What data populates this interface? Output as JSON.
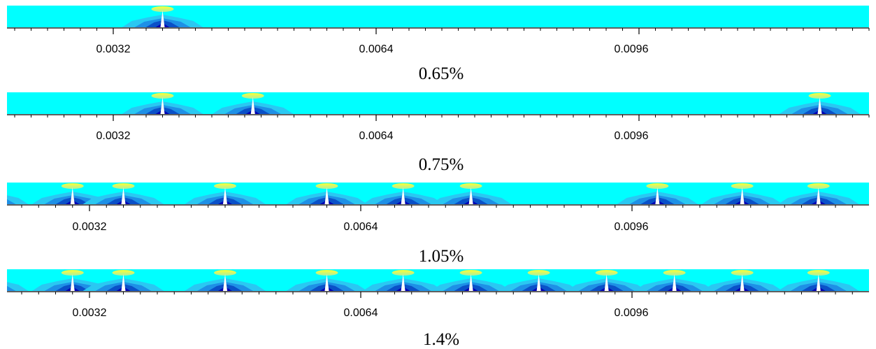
{
  "figure": {
    "colors": {
      "background": "#00FFFF",
      "band_light": "#2AC8F2",
      "band_mid": "#1E90E6",
      "band_dark": "#0A50C8",
      "band_deep": "#0000B4",
      "hot": "#FFFF33",
      "hot_edge": "#A8F0A0",
      "tip": "#FFFFFF",
      "axis": "#000000"
    },
    "axis": {
      "x_min": 0.0017,
      "x_max": 0.0122,
      "major_ticks": [
        0.0032,
        0.0064,
        0.0096
      ],
      "minor_step": 0.0002
    },
    "panels": [
      {
        "caption": "0.65%",
        "tick_labels": [
          "0.0032",
          "0.0064",
          "0.0096"
        ],
        "cracks": [
          0.0038
        ]
      },
      {
        "caption": "0.75%",
        "tick_labels": [
          "0.0032",
          "0.0064",
          "0.0096"
        ],
        "cracks": [
          0.0038,
          0.0049,
          0.0118
        ]
      },
      {
        "caption": "1.05%",
        "tick_labels": [
          "0.0032",
          "0.0064",
          "0.0096"
        ],
        "cracks": [
          0.002,
          0.003,
          0.0036,
          0.0048,
          0.006,
          0.0069,
          0.0077,
          0.0099,
          0.0109,
          0.0118
        ]
      },
      {
        "caption": "1.4%",
        "tick_labels": [
          "0.0032",
          "0.0064",
          "0.0096"
        ],
        "cracks": [
          0.002,
          0.003,
          0.0036,
          0.0048,
          0.006,
          0.0069,
          0.0077,
          0.0085,
          0.0093,
          0.0101,
          0.0109,
          0.0118
        ]
      }
    ]
  }
}
